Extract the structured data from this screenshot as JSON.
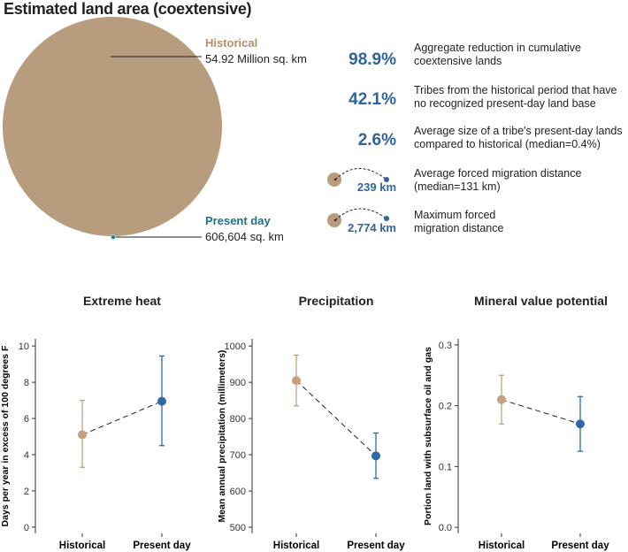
{
  "header": {
    "title": "Estimated land area (coextensive)"
  },
  "land_area": {
    "historical": {
      "label": "Historical",
      "value": "54.92 Million sq. km"
    },
    "present": {
      "label": "Present day",
      "value": "606,604 sq. km"
    }
  },
  "stats": [
    {
      "value": "98.9%",
      "label": "Aggregate reduction in cumulative coextensive lands"
    },
    {
      "value": "42.1%",
      "label": "Tribes from the historical period that have no recognized present-day land base"
    },
    {
      "value": "2.6%",
      "label": "Average size of a tribe's present-day lands compared to historical (median=0.4%)"
    },
    {
      "value": "239 km",
      "label": "Average forced migration distance (median=131 km)"
    },
    {
      "value": "2,774 km",
      "label": "Maximum forced migration distance"
    }
  ],
  "chart_data": [
    {
      "type": "pointrange",
      "title": "Extreme heat",
      "y_label": "Days per year in excess of 100 degrees F",
      "categories": [
        "Historical",
        "Present day"
      ],
      "values": [
        5.1,
        6.95
      ],
      "lower": [
        3.3,
        4.5
      ],
      "upper": [
        7.0,
        9.45
      ],
      "colors": [
        "#c4a07f",
        "#2f69a8"
      ],
      "ylim": [
        -0.35,
        10.4
      ],
      "yticks": [
        0,
        2,
        4,
        6,
        8,
        10
      ]
    },
    {
      "type": "pointrange",
      "title": "Precipitation",
      "y_label": "Mean annual precipitation (millimeters)",
      "categories": [
        "Historical",
        "Present day"
      ],
      "values": [
        905,
        697
      ],
      "lower": [
        835,
        635
      ],
      "upper": [
        975,
        760
      ],
      "colors": [
        "#c4a07f",
        "#2f69a8"
      ],
      "ylim": [
        483,
        1020
      ],
      "yticks": [
        500,
        600,
        700,
        800,
        900,
        1000
      ]
    },
    {
      "type": "pointrange",
      "title": "Mineral value potential",
      "y_label": "Portion land with subsurface oil and gas",
      "categories": [
        "Historical",
        "Present day"
      ],
      "values": [
        0.21,
        0.17
      ],
      "lower": [
        0.17,
        0.125
      ],
      "upper": [
        0.25,
        0.215
      ],
      "colors": [
        "#c4a07f",
        "#2f69a8"
      ],
      "ylim": [
        -0.01,
        0.31
      ],
      "yticks": [
        {
          "value": 0,
          "label": "0.0"
        },
        0.1,
        0.2,
        0.3
      ]
    }
  ]
}
